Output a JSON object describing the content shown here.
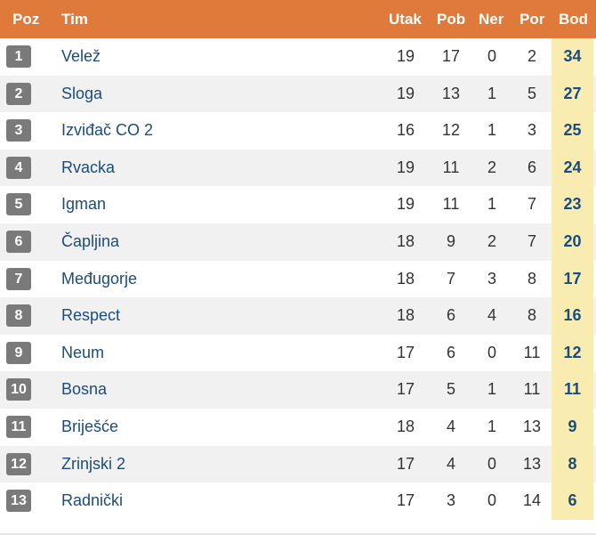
{
  "table": {
    "headers": {
      "poz": "Poz",
      "tim": "Tim",
      "utak": "Utak",
      "pob": "Pob",
      "ner": "Ner",
      "por": "Por",
      "bod": "Bod"
    },
    "rows": [
      {
        "poz": "1",
        "tim": "Velež",
        "utak": "19",
        "pob": "17",
        "ner": "0",
        "por": "2",
        "bod": "34"
      },
      {
        "poz": "2",
        "tim": "Sloga",
        "utak": "19",
        "pob": "13",
        "ner": "1",
        "por": "5",
        "bod": "27"
      },
      {
        "poz": "3",
        "tim": "Izviđač CO 2",
        "utak": "16",
        "pob": "12",
        "ner": "1",
        "por": "3",
        "bod": "25"
      },
      {
        "poz": "4",
        "tim": "Rvacka",
        "utak": "19",
        "pob": "11",
        "ner": "2",
        "por": "6",
        "bod": "24"
      },
      {
        "poz": "5",
        "tim": "Igman",
        "utak": "19",
        "pob": "11",
        "ner": "1",
        "por": "7",
        "bod": "23"
      },
      {
        "poz": "6",
        "tim": "Čapljina",
        "utak": "18",
        "pob": "9",
        "ner": "2",
        "por": "7",
        "bod": "20"
      },
      {
        "poz": "7",
        "tim": "Međugorje",
        "utak": "18",
        "pob": "7",
        "ner": "3",
        "por": "8",
        "bod": "17"
      },
      {
        "poz": "8",
        "tim": "Respect",
        "utak": "18",
        "pob": "6",
        "ner": "4",
        "por": "8",
        "bod": "16"
      },
      {
        "poz": "9",
        "tim": "Neum",
        "utak": "17",
        "pob": "6",
        "ner": "0",
        "por": "11",
        "bod": "12"
      },
      {
        "poz": "10",
        "tim": "Bosna",
        "utak": "17",
        "pob": "5",
        "ner": "1",
        "por": "11",
        "bod": "11"
      },
      {
        "poz": "11",
        "tim": "Briješće",
        "utak": "18",
        "pob": "4",
        "ner": "1",
        "por": "13",
        "bod": "9"
      },
      {
        "poz": "12",
        "tim": "Zrinjski 2",
        "utak": "17",
        "pob": "4",
        "ner": "0",
        "por": "13",
        "bod": "8"
      },
      {
        "poz": "13",
        "tim": "Radnički",
        "utak": "17",
        "pob": "3",
        "ner": "0",
        "por": "14",
        "bod": "6"
      }
    ]
  },
  "colors": {
    "header_bg": "#e07a3a",
    "badge_bg": "#7a7a7a",
    "team_text": "#1a4c7e",
    "points_bg": "#f8ecb0",
    "stripe_bg": "#f1f1f1"
  }
}
